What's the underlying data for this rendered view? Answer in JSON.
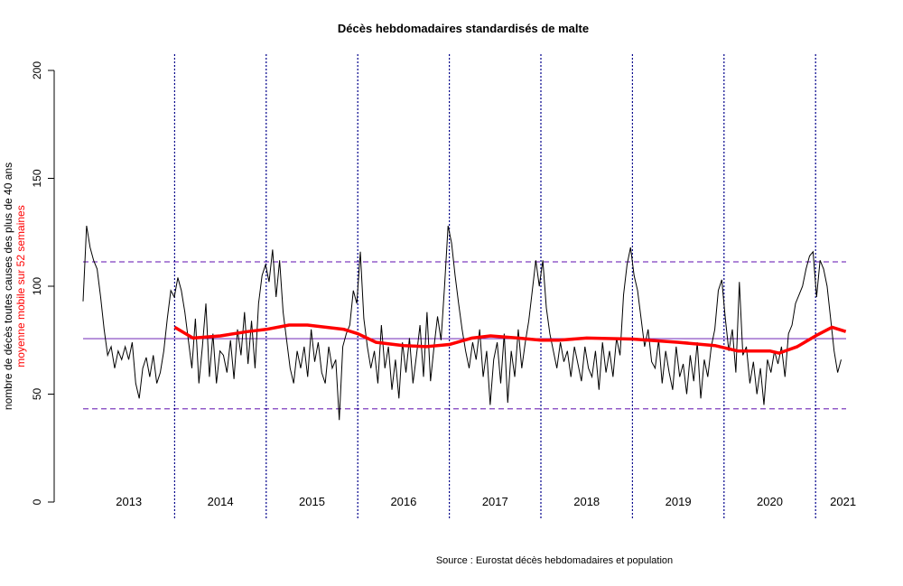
{
  "chart_data": {
    "type": "line",
    "title": "Décès hebdomadaires standardisés de malte",
    "ylabel": "nombre de décès toutes causes des plus de 40 ans",
    "ylabel2": "moyenne mobile sur 52 semaines",
    "source": "Source : Eurostat décès hebdomadaires et population",
    "ylim": [
      0,
      200
    ],
    "yticks": [
      "0",
      "50",
      "100",
      "150",
      "200"
    ],
    "year_labels": [
      "2013",
      "2014",
      "2015",
      "2016",
      "2017",
      "2018",
      "2019",
      "2020",
      "2021"
    ],
    "x_start_year": 2013,
    "step_weeks": 2,
    "series": [
      {
        "name": "décès hebdomadaires",
        "color": "#000000",
        "values": [
          93,
          128,
          118,
          112,
          108,
          95,
          80,
          68,
          72,
          62,
          70,
          66,
          72,
          66,
          74,
          55,
          48,
          62,
          67,
          58,
          68,
          55,
          60,
          70,
          85,
          98,
          95,
          104,
          98,
          88,
          75,
          62,
          85,
          55,
          72,
          92,
          58,
          78,
          55,
          70,
          68,
          60,
          75,
          57,
          80,
          68,
          88,
          64,
          84,
          62,
          92,
          105,
          110,
          102,
          117,
          95,
          112,
          88,
          75,
          62,
          55,
          70,
          62,
          72,
          58,
          80,
          65,
          74,
          60,
          55,
          72,
          62,
          66,
          38,
          72,
          78,
          82,
          98,
          92,
          116,
          85,
          72,
          62,
          70,
          55,
          82,
          62,
          72,
          52,
          66,
          48,
          74,
          60,
          76,
          55,
          68,
          82,
          58,
          88,
          56,
          72,
          86,
          75,
          100,
          128,
          120,
          105,
          92,
          80,
          70,
          62,
          74,
          66,
          80,
          58,
          70,
          45,
          66,
          74,
          55,
          78,
          46,
          70,
          58,
          80,
          62,
          74,
          84,
          98,
          112,
          100,
          112,
          90,
          78,
          70,
          62,
          74,
          65,
          70,
          58,
          72,
          64,
          56,
          72,
          62,
          58,
          70,
          52,
          74,
          60,
          70,
          58,
          76,
          68,
          96,
          110,
          118,
          105,
          98,
          85,
          72,
          80,
          65,
          62,
          75,
          55,
          70,
          60,
          52,
          72,
          58,
          64,
          50,
          68,
          56,
          74,
          48,
          66,
          58,
          72,
          80,
          98,
          103,
          85,
          70,
          80,
          60,
          102,
          68,
          72,
          55,
          65,
          50,
          62,
          45,
          66,
          60,
          70,
          64,
          72,
          58,
          78,
          82,
          92,
          96,
          100,
          108,
          114,
          116,
          95,
          112,
          108,
          100,
          85,
          70,
          60,
          66
        ]
      },
      {
        "name": "moyenne mobile sur 52 semaines",
        "color": "#ff0000",
        "points": [
          [
            2014.0,
            81
          ],
          [
            2014.2,
            76
          ],
          [
            2014.5,
            77
          ],
          [
            2014.8,
            79
          ],
          [
            2015.0,
            80
          ],
          [
            2015.25,
            82
          ],
          [
            2015.45,
            82
          ],
          [
            2015.85,
            80
          ],
          [
            2016.0,
            78
          ],
          [
            2016.2,
            74
          ],
          [
            2016.5,
            72.5
          ],
          [
            2016.75,
            72
          ],
          [
            2017.0,
            73
          ],
          [
            2017.25,
            76
          ],
          [
            2017.45,
            77
          ],
          [
            2017.75,
            76
          ],
          [
            2018.0,
            75
          ],
          [
            2018.2,
            75
          ],
          [
            2018.5,
            76
          ],
          [
            2019.0,
            75.5
          ],
          [
            2019.5,
            74
          ],
          [
            2019.9,
            72.5
          ],
          [
            2020.15,
            70
          ],
          [
            2020.5,
            70
          ],
          [
            2020.6,
            69
          ],
          [
            2020.8,
            72
          ],
          [
            2021.0,
            77
          ],
          [
            2021.18,
            81
          ],
          [
            2021.33,
            79
          ]
        ]
      }
    ],
    "reference_lines": [
      {
        "value": 111.3,
        "style": "dashed",
        "color": "#7f3fbf"
      },
      {
        "value": 75.7,
        "style": "solid",
        "color": "#7f3fbf"
      },
      {
        "value": 43.2,
        "style": "dashed",
        "color": "#7f3fbf"
      }
    ],
    "year_separators": [
      2014,
      2015,
      2016,
      2017,
      2018,
      2019,
      2020,
      2021
    ],
    "separator_color": "#00008b"
  }
}
